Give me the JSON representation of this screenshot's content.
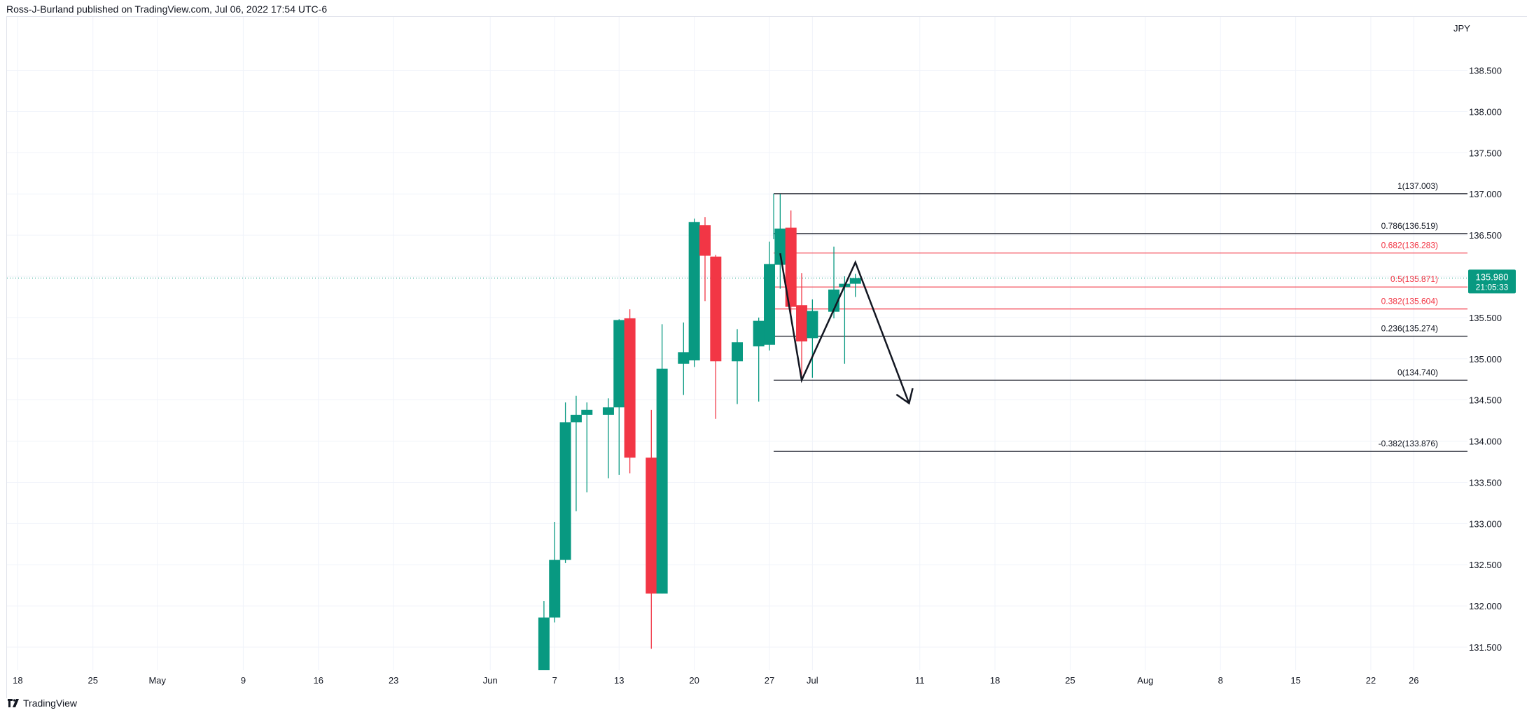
{
  "header": {
    "text": "Ross-J-Burland published on TradingView.com, Jul 06, 2022 17:54 UTC-6"
  },
  "footer": {
    "brand": "TradingView"
  },
  "colors": {
    "up": "#089981",
    "down": "#f23645",
    "grid": "#f0f3fa",
    "fib_neutral": "#131722",
    "fib_red": "#f23645",
    "price_tag": "#089981"
  },
  "chart_data": {
    "type": "candlestick",
    "currency_label": "JPY",
    "ylim": [
      131.22,
      139.15
    ],
    "y_ticks": [
      131.5,
      132.0,
      132.5,
      133.0,
      133.5,
      134.0,
      134.5,
      135.0,
      135.5,
      136.0,
      136.5,
      137.0,
      137.5,
      138.0,
      138.5
    ],
    "y_tick_labels": [
      "131.500",
      "132.000",
      "132.500",
      "133.000",
      "133.500",
      "134.000",
      "134.500",
      "135.000",
      "135.500",
      "136.000",
      "136.500",
      "137.000",
      "137.500",
      "138.000",
      "138.500"
    ],
    "x_axis_start": "2022-04-17",
    "x_axis_end": "2022-08-31",
    "x_ticks": [
      {
        "date": "2022-04-18",
        "label": "18"
      },
      {
        "date": "2022-04-25",
        "label": "25"
      },
      {
        "date": "2022-05-01",
        "label": "May"
      },
      {
        "date": "2022-05-09",
        "label": "9"
      },
      {
        "date": "2022-05-16",
        "label": "16"
      },
      {
        "date": "2022-05-23",
        "label": "23"
      },
      {
        "date": "2022-06-01",
        "label": "Jun"
      },
      {
        "date": "2022-06-07",
        "label": "7"
      },
      {
        "date": "2022-06-13",
        "label": "13"
      },
      {
        "date": "2022-06-20",
        "label": "20"
      },
      {
        "date": "2022-06-27",
        "label": "27"
      },
      {
        "date": "2022-07-01",
        "label": "Jul"
      },
      {
        "date": "2022-07-11",
        "label": "11"
      },
      {
        "date": "2022-07-18",
        "label": "18"
      },
      {
        "date": "2022-07-25",
        "label": "25"
      },
      {
        "date": "2022-08-01",
        "label": "Aug"
      },
      {
        "date": "2022-08-08",
        "label": "8"
      },
      {
        "date": "2022-08-15",
        "label": "15"
      },
      {
        "date": "2022-08-22",
        "label": "22"
      },
      {
        "date": "2022-08-26",
        "label": "26"
      }
    ],
    "candles": [
      {
        "date": "2022-06-06",
        "open": 131.22,
        "high": 132.06,
        "low": 131.22,
        "close": 131.86
      },
      {
        "date": "2022-06-07",
        "open": 131.86,
        "high": 133.02,
        "low": 131.8,
        "close": 132.56
      },
      {
        "date": "2022-06-08",
        "open": 132.56,
        "high": 134.47,
        "low": 132.52,
        "close": 134.23
      },
      {
        "date": "2022-06-09",
        "open": 134.23,
        "high": 134.55,
        "low": 133.15,
        "close": 134.32
      },
      {
        "date": "2022-06-10",
        "open": 134.32,
        "high": 134.47,
        "low": 133.38,
        "close": 134.38
      },
      {
        "date": "2022-06-12",
        "open": 134.32,
        "high": 134.52,
        "low": 133.55,
        "close": 134.41
      },
      {
        "date": "2022-06-13",
        "open": 134.41,
        "high": 135.48,
        "low": 133.59,
        "close": 135.47
      },
      {
        "date": "2022-06-14",
        "open": 135.49,
        "high": 135.6,
        "low": 133.61,
        "close": 133.8
      },
      {
        "date": "2022-06-16",
        "open": 133.8,
        "high": 134.38,
        "low": 131.48,
        "close": 132.15
      },
      {
        "date": "2022-06-17",
        "open": 132.15,
        "high": 135.42,
        "low": 132.15,
        "close": 134.88
      },
      {
        "date": "2022-06-19",
        "open": 134.94,
        "high": 135.44,
        "low": 134.56,
        "close": 135.08
      },
      {
        "date": "2022-06-20",
        "open": 134.98,
        "high": 136.7,
        "low": 134.9,
        "close": 136.66
      },
      {
        "date": "2022-06-21",
        "open": 136.62,
        "high": 136.72,
        "low": 135.7,
        "close": 136.25
      },
      {
        "date": "2022-06-22",
        "open": 136.24,
        "high": 136.26,
        "low": 134.27,
        "close": 134.97
      },
      {
        "date": "2022-06-24",
        "open": 134.97,
        "high": 135.36,
        "low": 134.45,
        "close": 135.2
      },
      {
        "date": "2022-06-26",
        "open": 135.15,
        "high": 135.5,
        "low": 134.48,
        "close": 135.46
      },
      {
        "date": "2022-06-27",
        "open": 135.17,
        "high": 136.42,
        "low": 135.1,
        "close": 136.15
      },
      {
        "date": "2022-06-28",
        "open": 136.14,
        "high": 137.0,
        "low": 135.85,
        "close": 136.58
      },
      {
        "date": "2022-06-29",
        "open": 136.59,
        "high": 136.8,
        "low": 135.52,
        "close": 135.63
      },
      {
        "date": "2022-06-30",
        "open": 135.65,
        "high": 136.04,
        "low": 134.74,
        "close": 135.21
      },
      {
        "date": "2022-07-01",
        "open": 135.25,
        "high": 135.72,
        "low": 134.77,
        "close": 135.58
      },
      {
        "date": "2022-07-03",
        "open": 135.57,
        "high": 136.36,
        "low": 135.49,
        "close": 135.84
      },
      {
        "date": "2022-07-04",
        "open": 135.87,
        "high": 136.0,
        "low": 134.94,
        "close": 135.91
      },
      {
        "date": "2022-07-05",
        "open": 135.91,
        "high": 136.03,
        "low": 135.75,
        "close": 135.98
      }
    ],
    "last_price": {
      "value": 135.98,
      "label": "135.980",
      "countdown": "21:05:33"
    },
    "fib_start_date": "2022-06-27",
    "fib_levels": [
      {
        "value": 137.003,
        "label": "1(137.003)",
        "color": "#131722"
      },
      {
        "value": 136.519,
        "label": "0.786(136.519)",
        "color": "#131722"
      },
      {
        "value": 136.283,
        "label": "0.682(136.283)",
        "color": "#f23645"
      },
      {
        "value": 135.871,
        "label": "0.5(135.871)",
        "color": "#f23645"
      },
      {
        "value": 135.604,
        "label": "0.382(135.604)",
        "color": "#f23645"
      },
      {
        "value": 135.274,
        "label": "0.236(135.274)",
        "color": "#131722"
      },
      {
        "value": 134.74,
        "label": "0(134.740)",
        "color": "#131722"
      },
      {
        "value": 133.876,
        "label": "-0.382(133.876)",
        "color": "#131722"
      }
    ],
    "drawing_path": [
      {
        "date": "2022-06-28",
        "value": 136.28
      },
      {
        "date": "2022-06-30",
        "value": 134.74
      },
      {
        "date": "2022-07-05",
        "value": 136.17
      },
      {
        "date": "2022-07-10",
        "value": 134.46
      }
    ]
  }
}
